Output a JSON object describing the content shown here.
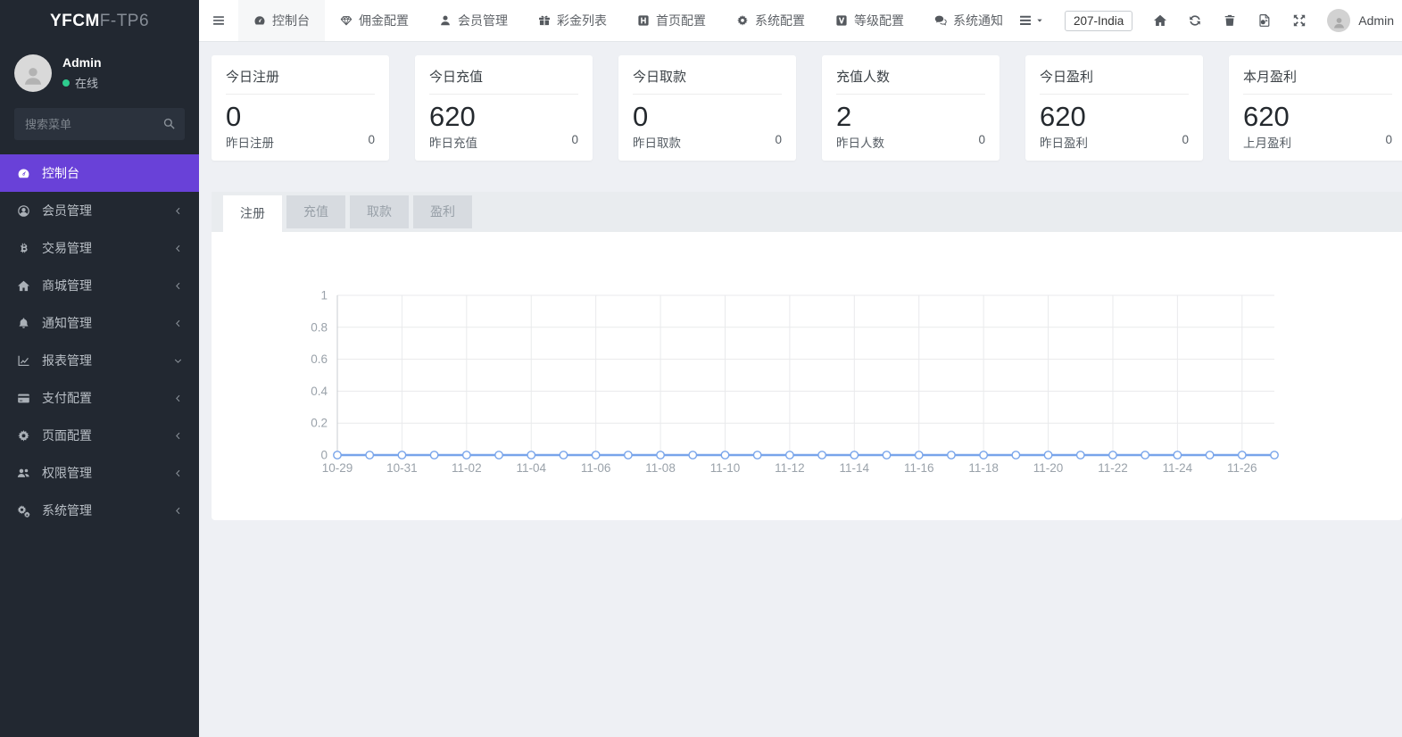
{
  "sidebar": {
    "logo": {
      "bold": "YFCM",
      "light": "F-TP6"
    },
    "profile": {
      "name": "Admin",
      "status": "在线"
    },
    "search_placeholder": "搜索菜单",
    "items": [
      {
        "label": "控制台",
        "icon": "dashboard-icon",
        "active": true,
        "chevron": "none"
      },
      {
        "label": "会员管理",
        "icon": "member-icon",
        "active": false,
        "chevron": "left"
      },
      {
        "label": "交易管理",
        "icon": "bitcoin-icon",
        "active": false,
        "chevron": "left"
      },
      {
        "label": "商城管理",
        "icon": "mall-home-icon",
        "active": false,
        "chevron": "left"
      },
      {
        "label": "通知管理",
        "icon": "bell-icon",
        "active": false,
        "chevron": "left"
      },
      {
        "label": "报表管理",
        "icon": "chart-line-icon",
        "active": false,
        "chevron": "down"
      },
      {
        "label": "支付配置",
        "icon": "credit-card-icon",
        "active": false,
        "chevron": "left"
      },
      {
        "label": "页面配置",
        "icon": "gear-icon",
        "active": false,
        "chevron": "left"
      },
      {
        "label": "权限管理",
        "icon": "users-group-icon",
        "active": false,
        "chevron": "left"
      },
      {
        "label": "系统管理",
        "icon": "cogs-icon",
        "active": false,
        "chevron": "left"
      }
    ]
  },
  "topbar": {
    "nav": [
      {
        "label": "控制台",
        "icon": "dashboard-icon",
        "active": true
      },
      {
        "label": "佣金配置",
        "icon": "gem-icon",
        "active": false
      },
      {
        "label": "会员管理",
        "icon": "user-icon",
        "active": false
      },
      {
        "label": "彩金列表",
        "icon": "gift-icon",
        "active": false
      },
      {
        "label": "首页配置",
        "icon": "h-square-icon",
        "active": false
      },
      {
        "label": "系统配置",
        "icon": "gear-icon",
        "active": false
      },
      {
        "label": "等级配置",
        "icon": "v-square-icon",
        "active": false
      },
      {
        "label": "系统通知",
        "icon": "comments-icon",
        "active": false
      }
    ],
    "site_selector": "207-India",
    "username": "Admin",
    "action_icons": [
      "menu-list-icon",
      "caret-down-icon",
      "home-icon",
      "refresh-icon",
      "trash-icon",
      "clear-cache-icon",
      "expand-icon",
      "gear-icon"
    ]
  },
  "stats": [
    {
      "title": "今日注册",
      "value": "0",
      "sub_label": "昨日注册",
      "sub_value": "0"
    },
    {
      "title": "今日充值",
      "value": "620",
      "sub_label": "昨日充值",
      "sub_value": "0"
    },
    {
      "title": "今日取款",
      "value": "0",
      "sub_label": "昨日取款",
      "sub_value": "0"
    },
    {
      "title": "充值人数",
      "value": "2",
      "sub_label": "昨日人数",
      "sub_value": "0"
    },
    {
      "title": "今日盈利",
      "value": "620",
      "sub_label": "昨日盈利",
      "sub_value": "0"
    },
    {
      "title": "本月盈利",
      "value": "620",
      "sub_label": "上月盈利",
      "sub_value": "0"
    }
  ],
  "tabs": [
    {
      "label": "注册",
      "active": true
    },
    {
      "label": "充值",
      "active": false
    },
    {
      "label": "取款",
      "active": false
    },
    {
      "label": "盈利",
      "active": false
    }
  ],
  "chart_data": {
    "type": "line",
    "title": "",
    "xlabel": "",
    "ylabel": "",
    "x": [
      "10-29",
      "10-30",
      "10-31",
      "11-01",
      "11-02",
      "11-03",
      "11-04",
      "11-05",
      "11-06",
      "11-07",
      "11-08",
      "11-09",
      "11-10",
      "11-11",
      "11-12",
      "11-13",
      "11-14",
      "11-15",
      "11-16",
      "11-17",
      "11-18",
      "11-19",
      "11-20",
      "11-21",
      "11-22",
      "11-23",
      "11-24",
      "11-25",
      "11-26",
      "11-27"
    ],
    "values": [
      0,
      0,
      0,
      0,
      0,
      0,
      0,
      0,
      0,
      0,
      0,
      0,
      0,
      0,
      0,
      0,
      0,
      0,
      0,
      0,
      0,
      0,
      0,
      0,
      0,
      0,
      0,
      0,
      0,
      0
    ],
    "ylim": [
      0,
      1
    ],
    "yticks": [
      0,
      0.2,
      0.4,
      0.6,
      0.8,
      1
    ],
    "x_label_every": 2,
    "grid": true,
    "legend": "none",
    "line_color": "#78a4ea",
    "marker": "open-circle"
  },
  "colors": {
    "accent_purple": "#6941d8",
    "sidebar_bg": "#222831",
    "online_green": "#2ecc8e",
    "chart_line": "#78a4ea",
    "content_bg": "#eef0f4"
  }
}
